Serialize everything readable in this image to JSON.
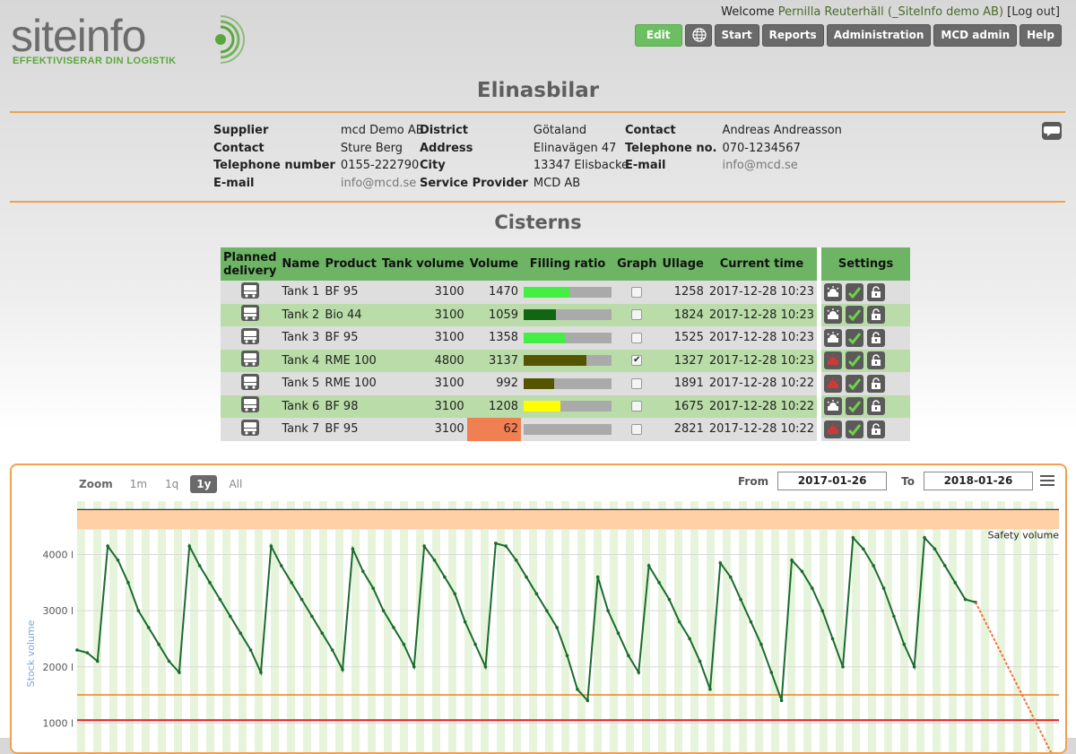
{
  "brand": {
    "name": "siteinfo",
    "tagline": "EFFEKTIVISERAR DIN LOGISTIK",
    "green": "#59a73c",
    "grey": "#6c6c6c"
  },
  "header": {
    "welcome": "Welcome",
    "user": "Pernilla Reuterhäll (_SiteInfo demo AB)",
    "logout": "Log out"
  },
  "nav": {
    "edit": "Edit",
    "globe_icon": "globe-icon",
    "start": "Start",
    "reports": "Reports",
    "administration": "Administration",
    "mcd_admin": "MCD admin",
    "help": "Help"
  },
  "page": {
    "title": "Elinasbilar",
    "section_title": "Cisterns"
  },
  "info": {
    "col1": [
      {
        "label": "Supplier",
        "value": "mcd Demo AB"
      },
      {
        "label": "Contact",
        "value": "Sture Berg"
      },
      {
        "label": "Telephone number",
        "value": "0155-222790"
      },
      {
        "label": "E-mail",
        "value": "info@mcd.se"
      }
    ],
    "col2": [
      {
        "label": "District",
        "value": "Götaland"
      },
      {
        "label": "Address",
        "value": "Elinavägen 47"
      },
      {
        "label": "City",
        "value": "13347 Elisbacke"
      },
      {
        "label": "Service Provider",
        "value": "MCD AB"
      }
    ],
    "col3": [
      {
        "label": "Contact",
        "value": "Andreas Andreasson"
      },
      {
        "label": "Telephone no.",
        "value": "070-1234567"
      },
      {
        "label": "E-mail",
        "value": "info@mcd.se"
      }
    ]
  },
  "table": {
    "headers": {
      "planned": "Planned delivery",
      "name": "Name",
      "product": "Product",
      "tank_volume": "Tank volume",
      "volume": "Volume",
      "filling": "Filling ratio",
      "graph": "Graph",
      "ullage": "Ullage",
      "time": "Current time",
      "settings": "Settings"
    },
    "rows": [
      {
        "name": "Tank 1",
        "product": "BF 95",
        "tank_volume": "3100",
        "volume": "1470",
        "fill": 0.52,
        "fill_color": "#44ee44",
        "graph": false,
        "ullage": "1258",
        "time": "2017-12-28 10:23",
        "alarm": "normal"
      },
      {
        "name": "Tank 2",
        "product": "Bio 44",
        "tank_volume": "3100",
        "volume": "1059",
        "fill": 0.37,
        "fill_color": "#116611",
        "graph": false,
        "ullage": "1824",
        "time": "2017-12-28 10:23",
        "alarm": "normal"
      },
      {
        "name": "Tank 3",
        "product": "BF 95",
        "tank_volume": "3100",
        "volume": "1358",
        "fill": 0.47,
        "fill_color": "#44ee44",
        "graph": false,
        "ullage": "1525",
        "time": "2017-12-28 10:23",
        "alarm": "normal"
      },
      {
        "name": "Tank 4",
        "product": "RME 100",
        "tank_volume": "4800",
        "volume": "3137",
        "fill": 0.71,
        "fill_color": "#555500",
        "graph": true,
        "ullage": "1327",
        "time": "2017-12-28 10:23",
        "alarm": "red"
      },
      {
        "name": "Tank 5",
        "product": "RME 100",
        "tank_volume": "3100",
        "volume": "992",
        "fill": 0.35,
        "fill_color": "#555500",
        "graph": false,
        "ullage": "1891",
        "time": "2017-12-28 10:22",
        "alarm": "red"
      },
      {
        "name": "Tank 6",
        "product": "BF 98",
        "tank_volume": "3100",
        "volume": "1208",
        "fill": 0.42,
        "fill_color": "#ffff00",
        "graph": false,
        "ullage": "1675",
        "time": "2017-12-28 10:22",
        "alarm": "normal"
      },
      {
        "name": "Tank 7",
        "product": "BF 95",
        "tank_volume": "3100",
        "volume": "62",
        "fill": 0.0,
        "fill_color": "#44ee44",
        "graph": false,
        "ullage": "2821",
        "time": "2017-12-28 10:22",
        "alarm": "red",
        "low": true
      }
    ]
  },
  "chart_toolbar": {
    "zoom_label": "Zoom",
    "zoom_options": [
      "1m",
      "1q",
      "1y",
      "All"
    ],
    "zoom_active": "1y",
    "from_label": "From",
    "from_value": "2017-01-26",
    "to_label": "To",
    "to_value": "2018-01-26"
  },
  "chart_data": {
    "type": "line",
    "ylabel": "Stock volume",
    "yticks": [
      "1000 l",
      "2000 l",
      "3000 l",
      "4000 l"
    ],
    "ylim": [
      480,
      4950
    ],
    "annotations": {
      "safety_label": "Safety volume"
    },
    "thresholds": {
      "orange": 1500,
      "red": 1050,
      "safety_band": [
        4450,
        4800
      ],
      "top_line": 4800
    },
    "colors": {
      "line": "#1c6b2e",
      "forecast": "#f07040",
      "orange": "#f08a2a",
      "red": "#e02020",
      "band": "#ffcfa6",
      "stripe": "#e6f4dc"
    },
    "series": [
      {
        "values": [
          2300,
          2250,
          2100,
          4150,
          3900,
          3500,
          3000,
          2700,
          2400,
          2100,
          1900,
          4150,
          3800,
          3500,
          3200,
          2900,
          2600,
          2300,
          1900,
          4150,
          3800,
          3500,
          3200,
          2900,
          2600,
          2300,
          1950,
          4100,
          3700,
          3400,
          3000,
          2700,
          2400,
          2000,
          4150,
          3900,
          3600,
          3300,
          2800,
          2400,
          2000,
          4200,
          4150,
          3900,
          3600,
          3300,
          3000,
          2700,
          2200,
          1600,
          1400,
          3600,
          3000,
          2600,
          2200,
          1900,
          3800,
          3500,
          3200,
          2800,
          2500,
          2100,
          1600,
          3850,
          3600,
          3200,
          2800,
          2400,
          1900,
          1400,
          3900,
          3700,
          3400,
          3000,
          2500,
          2000,
          4300,
          4100,
          3800,
          3400,
          2900,
          2400,
          2000,
          4300,
          4100,
          3800,
          3500,
          3200,
          3150
        ]
      }
    ],
    "forecast": {
      "from": 3150,
      "to": 450
    }
  }
}
